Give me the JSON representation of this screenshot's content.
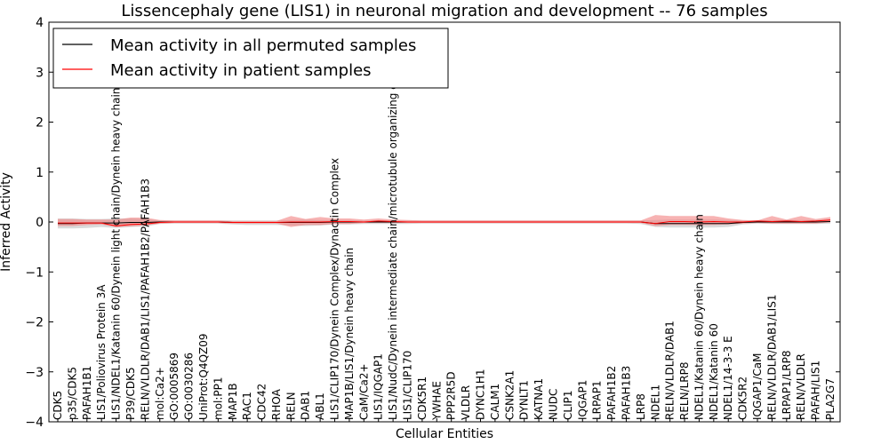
{
  "chart_data": {
    "type": "line",
    "title": "Lissencephaly gene (LIS1) in neuronal migration and development -- 76 samples",
    "xlabel": "Cellular Entities",
    "ylabel": "Inferred Activity",
    "ylim": [
      -4,
      4
    ],
    "yticks": [
      "−4",
      "−3",
      "−2",
      "−1",
      "0",
      "1",
      "2",
      "3",
      "4"
    ],
    "legend_position": "top-left",
    "categories": [
      "CDK5",
      "p35/CDK5",
      "PAFAH1B1",
      "LIS1/Poliovirus Protein 3A",
      "LIS1/NDEL1/Katanin 60/Dynein light chain/Dynein heavy chain",
      "P39/CDK5",
      "RELN/VLDLR/DAB1/LIS1/PAFAH1B2/PAFAH1B3",
      "mol:Ca2+",
      "GO:0005869",
      "GO:0030286",
      "UniProt:Q4QZ09",
      "mol:PP1",
      "MAP1B",
      "RAC1",
      "CDC42",
      "RHOA",
      "RELN",
      "DAB1",
      "ABL1",
      "LIS1/CLIP170/Dynein Complex/Dynactin Complex",
      "MAP1B/LIS1/Dynein heavy chain",
      "CaM/Ca2+",
      "LIS1/IQGAP1",
      "LIS1/NudC/Dynein intermediate chain/microtubule organizing center",
      "LIS1/CLIP170",
      "CDK5R1",
      "YWHAE",
      "PPP2R5D",
      "VLDLR",
      "DYNC1H1",
      "CALM1",
      "CSNK2A1",
      "DYNLT1",
      "KATNA1",
      "NUDC",
      "CLIP1",
      "IQGAP1",
      "LRPAP1",
      "PAFAH1B2",
      "PAFAH1B3",
      "LRP8",
      "NDEL1",
      "RELN/VLDLR/DAB1",
      "RELN/LRP8",
      "NDEL1/Katanin 60/Dynein heavy chain",
      "NDEL1/Katanin 60",
      "NDEL1/14-3-3 E",
      "CDK5R2",
      "IQGAP1/CaM",
      "RELN/VLDLR/DAB1/LIS1",
      "LRPAP1/LRP8",
      "RELN/VLDLR",
      "PAFAH/LIS1",
      "PLA2G7"
    ],
    "series": [
      {
        "name": "Mean activity in all permuted samples",
        "color": "#000000",
        "band_color": "#bbbbbb",
        "values": [
          -0.03,
          -0.03,
          -0.02,
          -0.02,
          -0.02,
          -0.01,
          -0.01,
          0,
          0,
          0,
          0,
          0,
          -0.01,
          -0.01,
          -0.01,
          -0.01,
          -0.01,
          -0.01,
          -0.01,
          0,
          0,
          0,
          0,
          0,
          0,
          0,
          0,
          0,
          0,
          0,
          0,
          0,
          0,
          0,
          0,
          0,
          0,
          0,
          0,
          0,
          0,
          -0.03,
          -0.03,
          -0.03,
          -0.03,
          -0.03,
          -0.03,
          -0.01,
          0,
          0,
          0,
          0,
          0,
          0.01
        ],
        "lower": [
          -0.13,
          -0.13,
          -0.12,
          -0.1,
          -0.12,
          -0.1,
          -0.09,
          -0.04,
          -0.03,
          -0.03,
          -0.03,
          -0.03,
          -0.05,
          -0.06,
          -0.06,
          -0.06,
          -0.07,
          -0.08,
          -0.07,
          -0.05,
          -0.05,
          -0.04,
          -0.04,
          -0.04,
          -0.04,
          -0.03,
          -0.03,
          -0.03,
          -0.03,
          -0.03,
          -0.03,
          -0.03,
          -0.03,
          -0.03,
          -0.03,
          -0.03,
          -0.03,
          -0.03,
          -0.03,
          -0.03,
          -0.04,
          -0.1,
          -0.11,
          -0.11,
          -0.11,
          -0.11,
          -0.1,
          -0.05,
          -0.03,
          -0.04,
          -0.04,
          -0.04,
          -0.04,
          -0.03
        ],
        "upper": [
          0.07,
          0.07,
          0.06,
          0.06,
          0.07,
          0.07,
          0.06,
          0.03,
          0.03,
          0.03,
          0.03,
          0.03,
          0.03,
          0.03,
          0.03,
          0.03,
          0.04,
          0.05,
          0.04,
          0.04,
          0.04,
          0.03,
          0.03,
          0.03,
          0.03,
          0.03,
          0.03,
          0.03,
          0.03,
          0.03,
          0.03,
          0.03,
          0.03,
          0.03,
          0.03,
          0.03,
          0.03,
          0.03,
          0.03,
          0.03,
          0.03,
          0.04,
          0.05,
          0.05,
          0.05,
          0.05,
          0.04,
          0.03,
          0.03,
          0.04,
          0.04,
          0.04,
          0.04,
          0.05
        ]
      },
      {
        "name": "Mean activity in patient samples",
        "color": "#ff0000",
        "band_color": "#f28080",
        "values": [
          -0.02,
          -0.02,
          -0.02,
          -0.02,
          -0.08,
          -0.05,
          -0.04,
          -0.01,
          0,
          0,
          0,
          0,
          -0.01,
          -0.01,
          -0.01,
          -0.01,
          0,
          0,
          0,
          0.01,
          0.01,
          0,
          0.02,
          0.01,
          0,
          0,
          0,
          0,
          0,
          0,
          0,
          0,
          0,
          0,
          0,
          0,
          0,
          0,
          0,
          0,
          0,
          -0.03,
          0.01,
          0.01,
          0,
          0.01,
          0,
          0,
          0.02,
          0.01,
          0.02,
          0.01,
          0.02,
          0.04
        ],
        "lower": [
          -0.08,
          -0.08,
          -0.06,
          -0.05,
          -0.1,
          -0.09,
          -0.07,
          -0.03,
          -0.02,
          -0.02,
          -0.02,
          -0.02,
          -0.03,
          -0.03,
          -0.03,
          -0.03,
          -0.1,
          -0.06,
          -0.06,
          -0.04,
          -0.04,
          -0.02,
          -0.02,
          -0.02,
          -0.02,
          -0.02,
          -0.02,
          -0.02,
          -0.02,
          -0.02,
          -0.02,
          -0.02,
          -0.02,
          -0.02,
          -0.02,
          -0.02,
          -0.02,
          -0.02,
          -0.02,
          -0.02,
          -0.02,
          -0.08,
          -0.06,
          -0.06,
          -0.06,
          -0.06,
          -0.05,
          -0.03,
          -0.02,
          -0.03,
          -0.03,
          -0.03,
          -0.03,
          -0.01
        ],
        "upper": [
          0.06,
          0.06,
          0.05,
          0.05,
          0.05,
          0.09,
          0.09,
          0.04,
          0.03,
          0.03,
          0.03,
          0.03,
          0.02,
          0.02,
          0.02,
          0.02,
          0.12,
          0.06,
          0.1,
          0.07,
          0.07,
          0.05,
          0.07,
          0.05,
          0.04,
          0.03,
          0.03,
          0.03,
          0.03,
          0.03,
          0.03,
          0.03,
          0.03,
          0.03,
          0.03,
          0.03,
          0.03,
          0.03,
          0.03,
          0.03,
          0.03,
          0.14,
          0.12,
          0.12,
          0.12,
          0.12,
          0.07,
          0.04,
          0.03,
          0.12,
          0.05,
          0.12,
          0.06,
          0.1
        ]
      }
    ]
  }
}
